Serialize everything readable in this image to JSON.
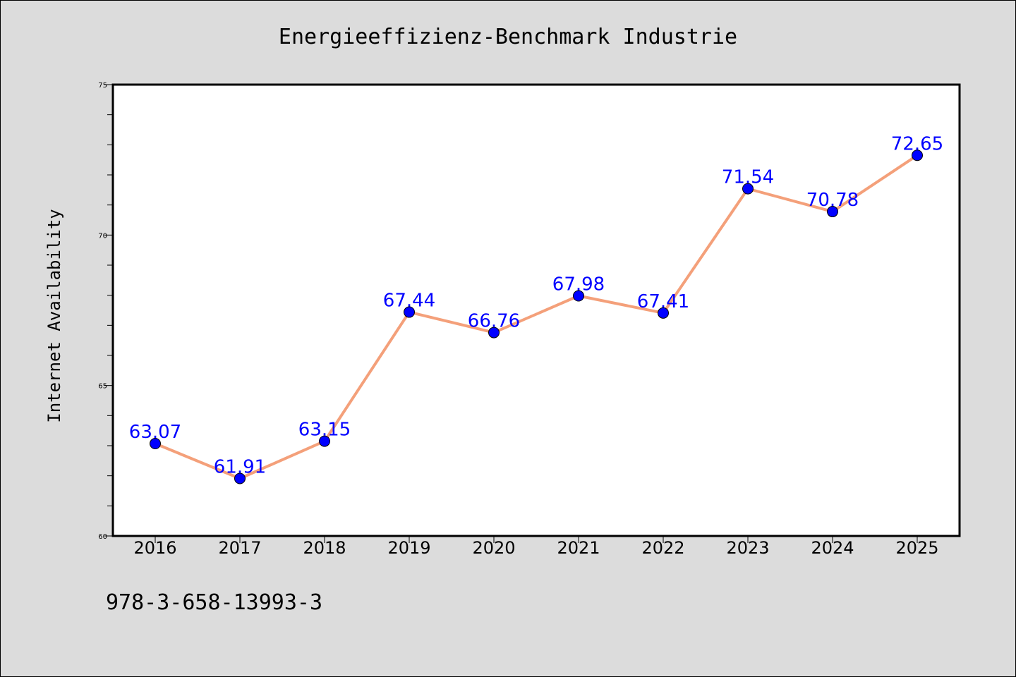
{
  "chart_data": {
    "type": "line",
    "title": "Energieeffizienz-Benchmark Industrie",
    "xlabel": "",
    "ylabel": "Internet Availability",
    "categories": [
      "2016",
      "2017",
      "2018",
      "2019",
      "2020",
      "2021",
      "2022",
      "2023",
      "2024",
      "2025"
    ],
    "series": [
      {
        "values": [
          63.07,
          61.91,
          63.15,
          67.44,
          66.76,
          67.98,
          67.41,
          71.54,
          70.78,
          72.65
        ],
        "data_labels": [
          "63.07",
          "61.91",
          "63.15",
          "67.44",
          "66.76",
          "67.98",
          "67.41",
          "71.54",
          "70.78",
          "72.65"
        ]
      }
    ],
    "ylim": [
      60,
      75
    ],
    "yticks": [
      60,
      65,
      70,
      75
    ],
    "ytick_labels": [
      "60",
      "65",
      "70",
      "75"
    ],
    "grid": false,
    "colors": {
      "line": "#f4a07a",
      "marker": "#0000ff",
      "data_label": "#0000ff",
      "background": "#dcdcdc",
      "plot_background": "#ffffff",
      "frame": "#000000"
    }
  },
  "footer": {
    "isbn": "978-3-658-13993-3"
  }
}
